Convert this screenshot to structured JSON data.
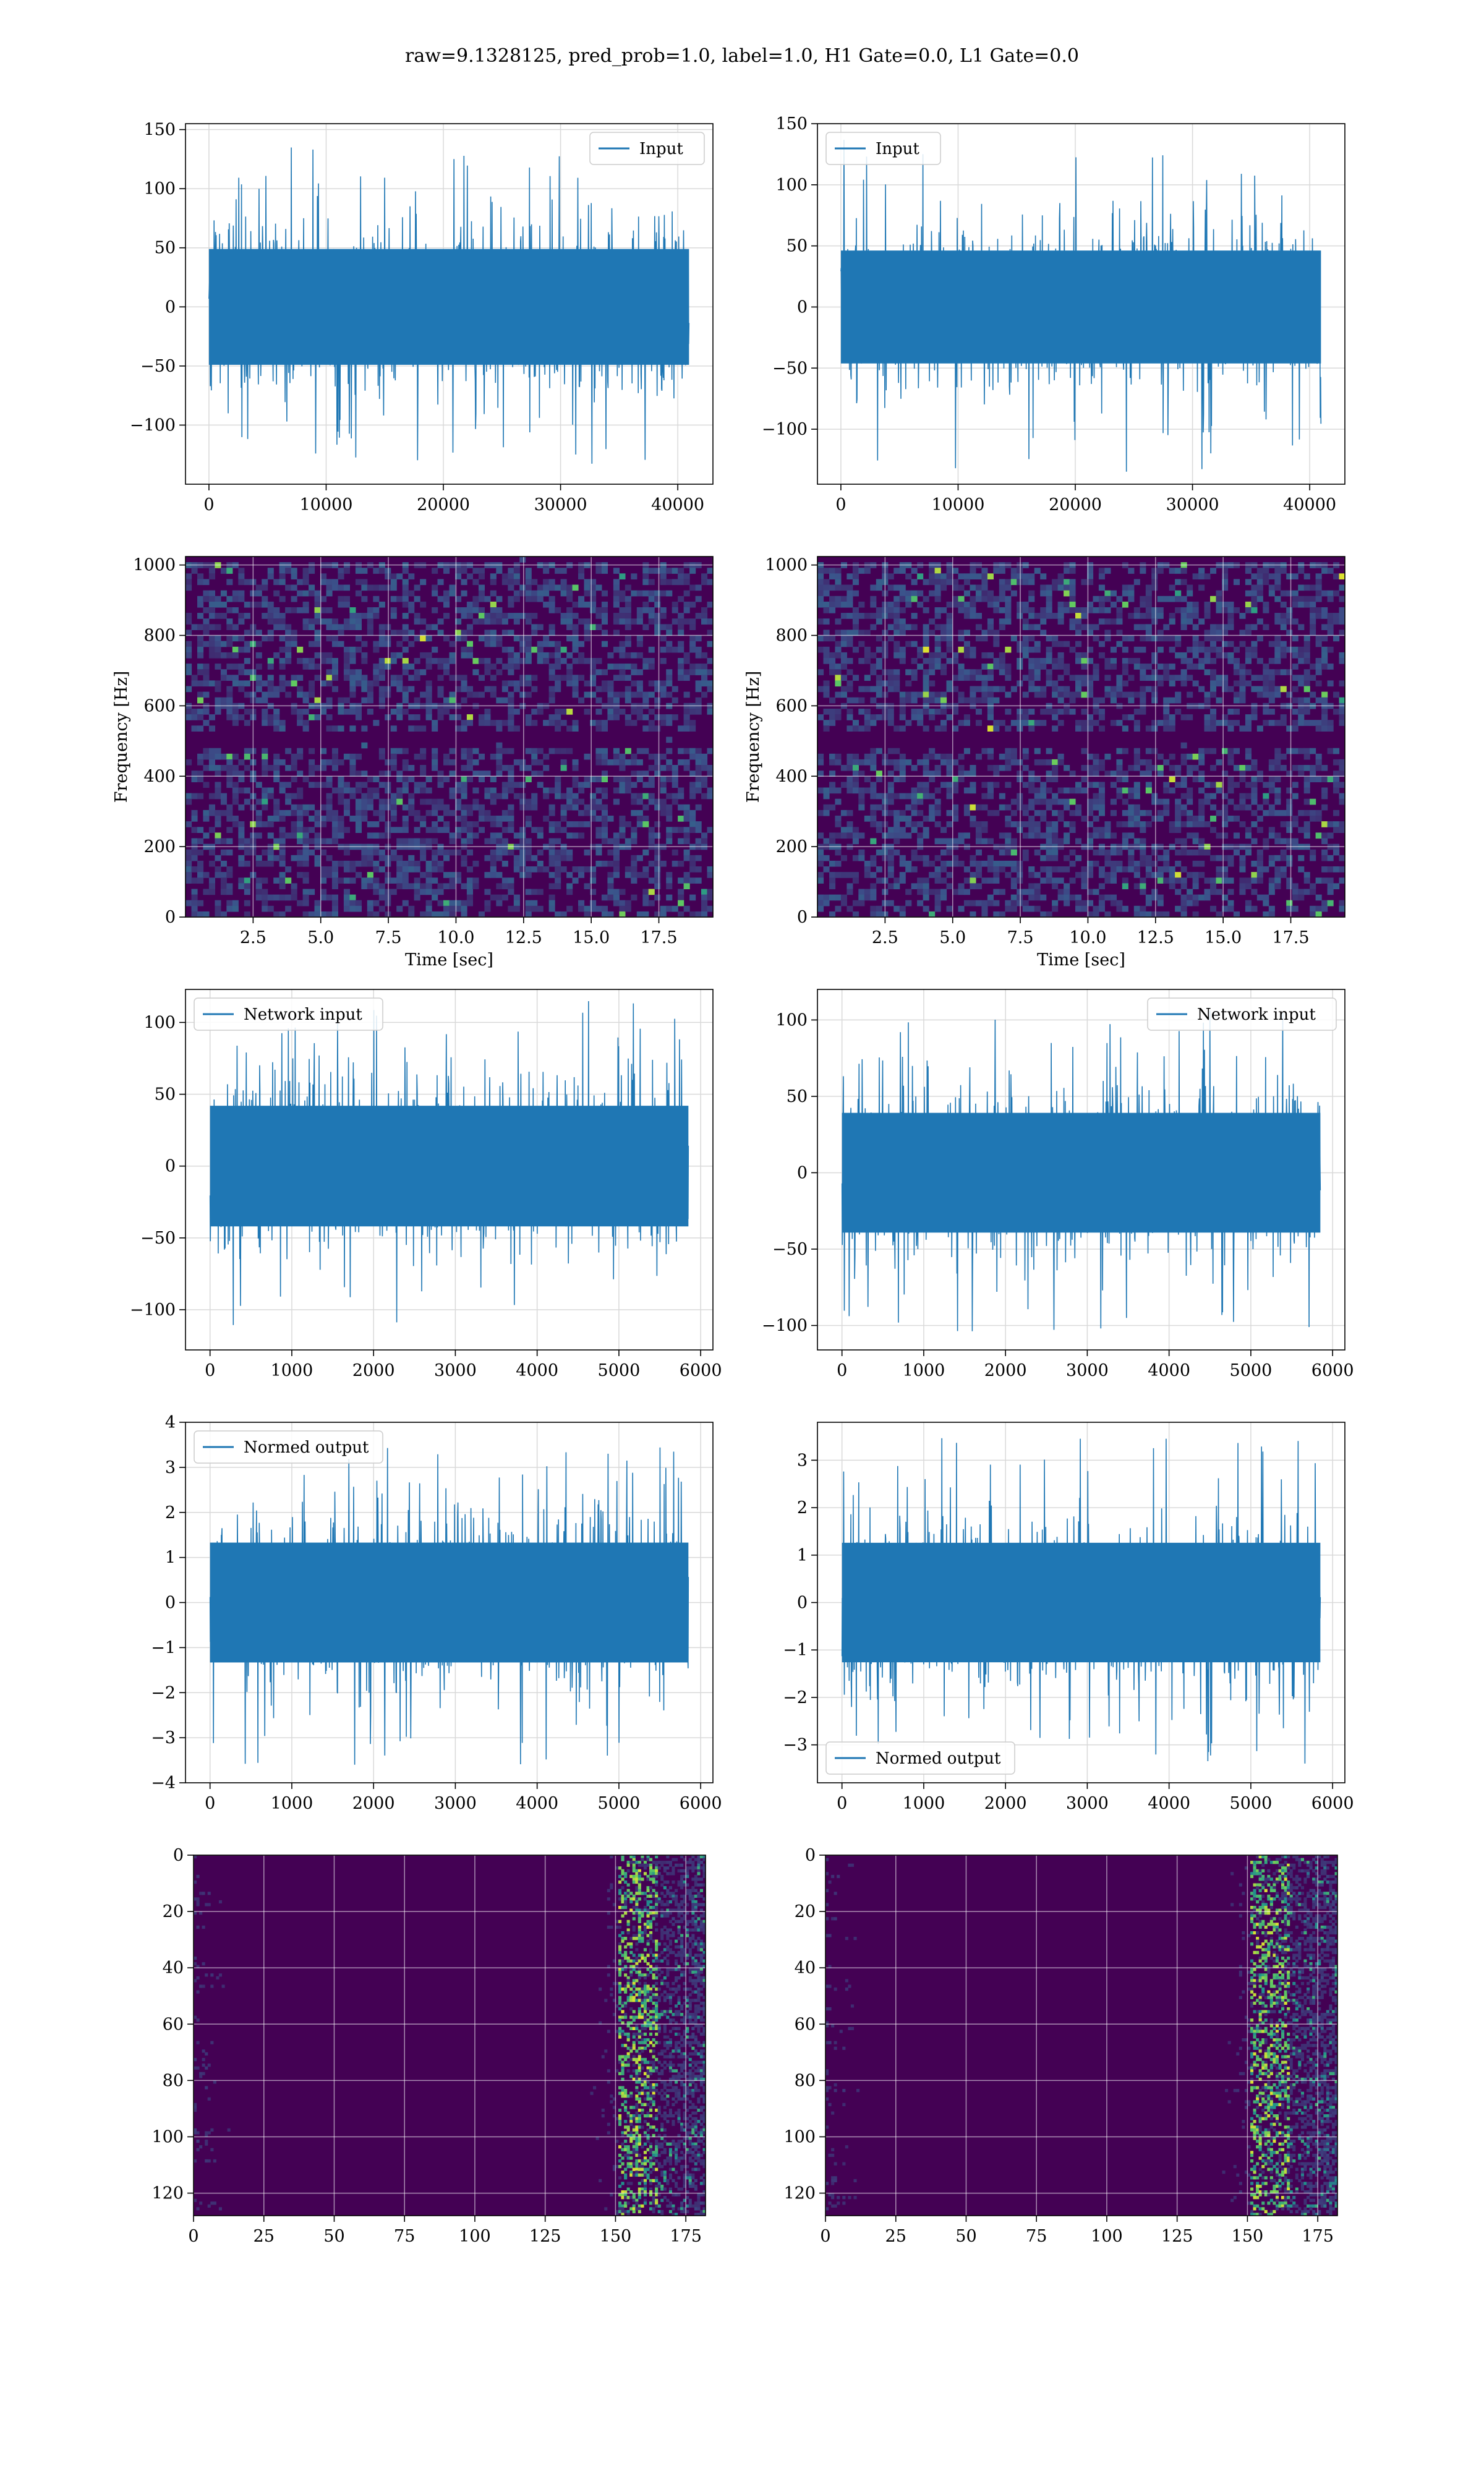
{
  "figure": {
    "suptitle": "raw=9.1328125, pred_prob=1.0, label=1.0, H1 Gate=0.0, L1 Gate=0.0"
  },
  "colors": {
    "line": "#1f77b4",
    "grid": "#d9d9d9",
    "axes": "#000000",
    "viridis": [
      "#440154",
      "#3b528b",
      "#21918c",
      "#5ec962",
      "#fde725"
    ]
  },
  "chart_data": [
    {
      "id": "r0c0",
      "type": "line",
      "legend": "Input",
      "legend_loc": "upper right",
      "xlim": [
        -2000,
        43000
      ],
      "ylim": [
        -150,
        155
      ],
      "xticks": [
        0,
        10000,
        20000,
        30000,
        40000
      ],
      "xticklabels": [
        "0",
        "10000",
        "20000",
        "30000",
        "40000"
      ],
      "yticks": [
        -100,
        -50,
        0,
        50,
        100,
        150
      ],
      "yticklabels": [
        "−100",
        "−50",
        "0",
        "50",
        "100",
        "150"
      ],
      "x_range": [
        0,
        40960
      ],
      "amplitude": 35,
      "peak": 135,
      "grid": true,
      "xlabel": "",
      "ylabel": ""
    },
    {
      "id": "r0c1",
      "type": "line",
      "legend": "Input",
      "legend_loc": "upper left",
      "xlim": [
        -2000,
        43000
      ],
      "ylim": [
        -145,
        150
      ],
      "xticks": [
        0,
        10000,
        20000,
        30000,
        40000
      ],
      "xticklabels": [
        "0",
        "10000",
        "20000",
        "30000",
        "40000"
      ],
      "yticks": [
        -100,
        -50,
        0,
        50,
        100,
        150
      ],
      "yticklabels": [
        "−100",
        "−50",
        "0",
        "50",
        "100",
        "150"
      ],
      "x_range": [
        0,
        40960
      ],
      "amplitude": 33,
      "peak": 137,
      "grid": true,
      "xlabel": "",
      "ylabel": ""
    },
    {
      "id": "r1c0",
      "type": "heatmap",
      "xlabel": "Time [sec]",
      "ylabel": "Frequency [Hz]",
      "xlim": [
        0,
        19.5
      ],
      "ylim": [
        0,
        1024
      ],
      "xticks": [
        2.5,
        5.0,
        7.5,
        10.0,
        12.5,
        15.0,
        17.5
      ],
      "xticklabels": [
        "2.5",
        "5.0",
        "7.5",
        "10.0",
        "12.5",
        "15.0",
        "17.5"
      ],
      "yticks": [
        0,
        200,
        400,
        600,
        800,
        1000
      ],
      "yticklabels": [
        "0",
        "200",
        "400",
        "600",
        "800",
        "1000"
      ],
      "colormap": "viridis",
      "grid": true
    },
    {
      "id": "r1c1",
      "type": "heatmap",
      "xlabel": "Time [sec]",
      "ylabel": "Frequency [Hz]",
      "xlim": [
        0,
        19.5
      ],
      "ylim": [
        0,
        1024
      ],
      "xticks": [
        2.5,
        5.0,
        7.5,
        10.0,
        12.5,
        15.0,
        17.5
      ],
      "xticklabels": [
        "2.5",
        "5.0",
        "7.5",
        "10.0",
        "12.5",
        "15.0",
        "17.5"
      ],
      "yticks": [
        0,
        200,
        400,
        600,
        800,
        1000
      ],
      "yticklabels": [
        "0",
        "200",
        "400",
        "600",
        "800",
        "1000"
      ],
      "colormap": "viridis",
      "grid": true
    },
    {
      "id": "r2c0",
      "type": "line",
      "legend": "Network input",
      "legend_loc": "upper left",
      "xlim": [
        -300,
        6150
      ],
      "ylim": [
        -128,
        123
      ],
      "xticks": [
        0,
        1000,
        2000,
        3000,
        4000,
        5000,
        6000
      ],
      "xticklabels": [
        "0",
        "1000",
        "2000",
        "3000",
        "4000",
        "5000",
        "6000"
      ],
      "yticks": [
        -100,
        -50,
        0,
        50,
        100
      ],
      "yticklabels": [
        "−100",
        "−50",
        "0",
        "50",
        "100"
      ],
      "x_range": [
        0,
        5850
      ],
      "amplitude": 30,
      "peak": 115,
      "grid": true,
      "xlabel": "",
      "ylabel": ""
    },
    {
      "id": "r2c1",
      "type": "line",
      "legend": "Network input",
      "legend_loc": "upper right",
      "xlim": [
        -300,
        6150
      ],
      "ylim": [
        -116,
        120
      ],
      "xticks": [
        0,
        1000,
        2000,
        3000,
        4000,
        5000,
        6000
      ],
      "xticklabels": [
        "0",
        "1000",
        "2000",
        "3000",
        "4000",
        "5000",
        "6000"
      ],
      "yticks": [
        -100,
        -50,
        0,
        50,
        100
      ],
      "yticklabels": [
        "−100",
        "−50",
        "0",
        "50",
        "100"
      ],
      "x_range": [
        0,
        5850
      ],
      "amplitude": 28,
      "peak": 108,
      "grid": true,
      "xlabel": "",
      "ylabel": ""
    },
    {
      "id": "r3c0",
      "type": "line",
      "legend": "Normed output",
      "legend_loc": "upper left",
      "xlim": [
        -300,
        6150
      ],
      "ylim": [
        -4,
        4
      ],
      "xticks": [
        0,
        1000,
        2000,
        3000,
        4000,
        5000,
        6000
      ],
      "xticklabels": [
        "0",
        "1000",
        "2000",
        "3000",
        "4000",
        "5000",
        "6000"
      ],
      "yticks": [
        -4,
        -3,
        -2,
        -1,
        0,
        1,
        2,
        3,
        4
      ],
      "yticklabels": [
        "−4",
        "−3",
        "−2",
        "−1",
        "0",
        "1",
        "2",
        "3",
        "4"
      ],
      "x_range": [
        0,
        5850
      ],
      "amplitude": 0.95,
      "peak": 3.6,
      "grid": true,
      "xlabel": "",
      "ylabel": ""
    },
    {
      "id": "r3c1",
      "type": "line",
      "legend": "Normed output",
      "legend_loc": "lower left",
      "xlim": [
        -300,
        6150
      ],
      "ylim": [
        -3.8,
        3.8
      ],
      "xticks": [
        0,
        1000,
        2000,
        3000,
        4000,
        5000,
        6000
      ],
      "xticklabels": [
        "0",
        "1000",
        "2000",
        "3000",
        "4000",
        "5000",
        "6000"
      ],
      "yticks": [
        -3,
        -2,
        -1,
        0,
        1,
        2,
        3
      ],
      "yticklabels": [
        "−3",
        "−2",
        "−1",
        "0",
        "1",
        "2",
        "3"
      ],
      "x_range": [
        0,
        5850
      ],
      "amplitude": 0.9,
      "peak": 3.5,
      "grid": true,
      "xlabel": "",
      "ylabel": ""
    },
    {
      "id": "r4c0",
      "type": "heatmap",
      "colormap": "viridis",
      "origin": "upper",
      "xlim": [
        0,
        182
      ],
      "ylim": [
        128,
        0
      ],
      "xticks": [
        0,
        25,
        50,
        75,
        100,
        125,
        150,
        175
      ],
      "xticklabels": [
        "0",
        "25",
        "50",
        "75",
        "100",
        "125",
        "150",
        "175"
      ],
      "yticks": [
        0,
        20,
        40,
        60,
        80,
        100,
        120
      ],
      "yticklabels": [
        "0",
        "20",
        "40",
        "60",
        "80",
        "100",
        "120"
      ],
      "grid": true,
      "xlabel": "",
      "ylabel": ""
    },
    {
      "id": "r4c1",
      "type": "heatmap",
      "colormap": "viridis",
      "origin": "upper",
      "xlim": [
        0,
        182
      ],
      "ylim": [
        128,
        0
      ],
      "xticks": [
        0,
        25,
        50,
        75,
        100,
        125,
        150,
        175
      ],
      "xticklabels": [
        "0",
        "25",
        "50",
        "75",
        "100",
        "125",
        "150",
        "175"
      ],
      "yticks": [
        0,
        20,
        40,
        60,
        80,
        100,
        120
      ],
      "yticklabels": [
        "0",
        "20",
        "40",
        "60",
        "80",
        "100",
        "120"
      ],
      "grid": true,
      "xlabel": "",
      "ylabel": ""
    }
  ]
}
